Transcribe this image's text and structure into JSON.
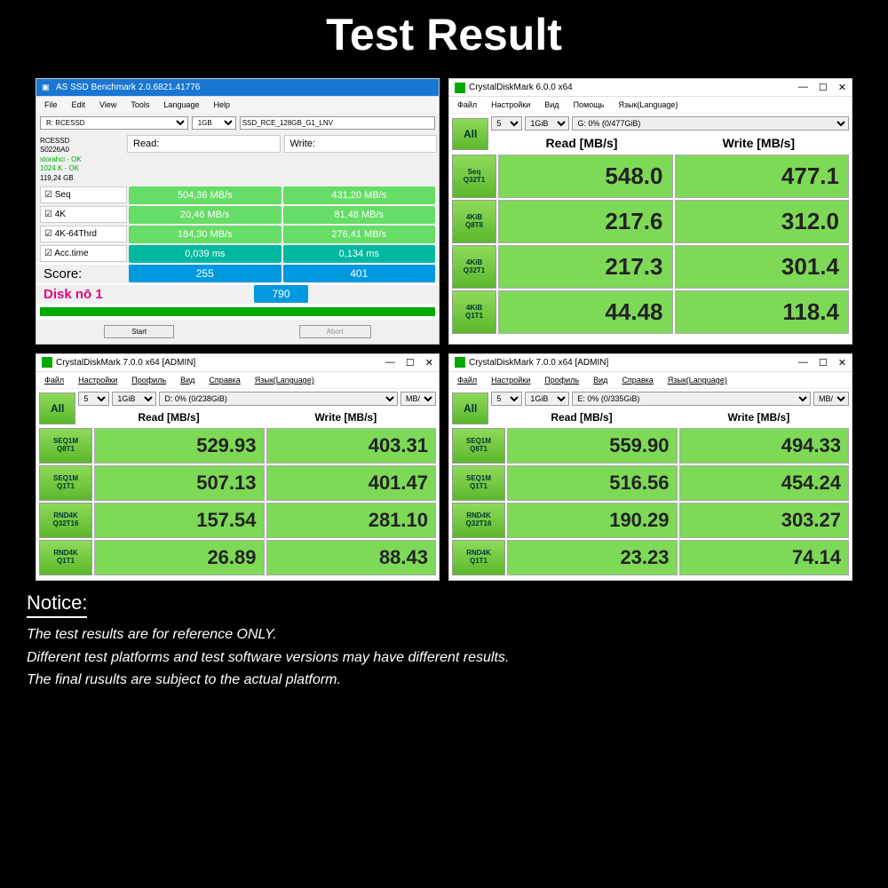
{
  "title": "Test Result",
  "asssd": {
    "winTitle": "AS SSD Benchmark 2.0.6821.41776",
    "menu": [
      "File",
      "Edit",
      "View",
      "Tools",
      "Language",
      "Help"
    ],
    "drive": "R: RCESSD",
    "size": "1GB",
    "ssdName": "SSD_RCE_128GB_G1_LNV",
    "info": {
      "model": "RCESSD",
      "serial": "S0226A0",
      "driver": "storahci - OK",
      "align": "1024 K - OK",
      "cap": "119,24 GB"
    },
    "hdrRead": "Read:",
    "hdrWrite": "Write:",
    "rows": [
      {
        "lbl": "☑ Seq",
        "r": "504,36 MB/s",
        "w": "431,20 MB/s"
      },
      {
        "lbl": "☑ 4K",
        "r": "20,46 MB/s",
        "w": "81,48 MB/s"
      },
      {
        "lbl": "☑ 4K-64Thrd",
        "r": "184,30 MB/s",
        "w": "276,41 MB/s"
      },
      {
        "lbl": "☑ Acc.time",
        "r": "0,039 ms",
        "w": "0,134 ms",
        "acc": true
      }
    ],
    "scoreLabel": "Score:",
    "scoreR": "255",
    "scoreW": "401",
    "diskLabel": "Disk nō 1",
    "total": "790",
    "startBtn": "Start",
    "abortBtn": "Abort"
  },
  "cdm6": {
    "winTitle": "CrystalDiskMark 6.0.0 x64",
    "menu": [
      "Файл",
      "Настройки",
      "Вид",
      "Помощь",
      "Язык(Language)"
    ],
    "all": "All",
    "sel": {
      "count": "5",
      "size": "1GiB",
      "drive": "G: 0% (0/477GiB)"
    },
    "hdrRead": "Read [MB/s]",
    "hdrWrite": "Write [MB/s]",
    "rows": [
      {
        "l1": "Seq",
        "l2": "Q32T1",
        "r": "548.0",
        "w": "477.1"
      },
      {
        "l1": "4KiB",
        "l2": "Q8T8",
        "r": "217.6",
        "w": "312.0"
      },
      {
        "l1": "4KiB",
        "l2": "Q32T1",
        "r": "217.3",
        "w": "301.4"
      },
      {
        "l1": "4KiB",
        "l2": "Q1T1",
        "r": "44.48",
        "w": "118.4"
      }
    ]
  },
  "cdm7a": {
    "winTitle": "CrystalDiskMark 7.0.0 x64 [ADMIN]",
    "menu": [
      "Файл",
      "Настройки",
      "Профиль",
      "Вид",
      "Справка",
      "Язык(Language)"
    ],
    "all": "All",
    "sel": {
      "count": "5",
      "size": "1GiB",
      "drive": "D: 0% (0/238GiB)",
      "unit": "MB/s"
    },
    "hdrRead": "Read [MB/s]",
    "hdrWrite": "Write [MB/s]",
    "rows": [
      {
        "l1": "SEQ1M",
        "l2": "Q8T1",
        "r": "529.93",
        "w": "403.31"
      },
      {
        "l1": "SEQ1M",
        "l2": "Q1T1",
        "r": "507.13",
        "w": "401.47"
      },
      {
        "l1": "RND4K",
        "l2": "Q32T16",
        "r": "157.54",
        "w": "281.10"
      },
      {
        "l1": "RND4K",
        "l2": "Q1T1",
        "r": "26.89",
        "w": "88.43"
      }
    ]
  },
  "cdm7b": {
    "winTitle": "CrystalDiskMark 7.0.0 x64 [ADMIN]",
    "menu": [
      "Файл",
      "Настройки",
      "Профиль",
      "Вид",
      "Справка",
      "Язык(Language)"
    ],
    "all": "All",
    "sel": {
      "count": "5",
      "size": "1GiB",
      "drive": "E: 0% (0/335GiB)",
      "unit": "MB/s"
    },
    "hdrRead": "Read [MB/s]",
    "hdrWrite": "Write [MB/s]",
    "rows": [
      {
        "l1": "SEQ1M",
        "l2": "Q8T1",
        "r": "559.90",
        "w": "494.33"
      },
      {
        "l1": "SEQ1M",
        "l2": "Q1T1",
        "r": "516.56",
        "w": "454.24"
      },
      {
        "l1": "RND4K",
        "l2": "Q32T16",
        "r": "190.29",
        "w": "303.27"
      },
      {
        "l1": "RND4K",
        "l2": "Q1T1",
        "r": "23.23",
        "w": "74.14"
      }
    ]
  },
  "notice": {
    "heading": "Notice:",
    "lines": [
      "The test results are for reference ONLY.",
      "Different test platforms and test software versions may have different results.",
      "The final rusults are subject to the actual platform."
    ]
  }
}
